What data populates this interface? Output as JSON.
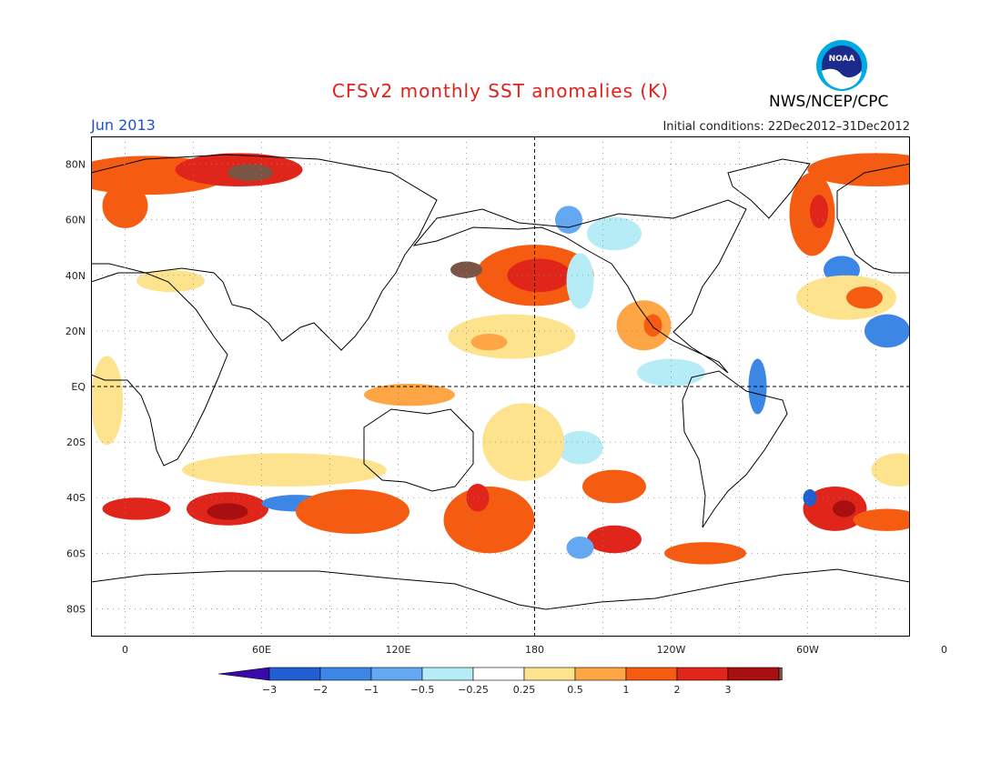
{
  "title": "CFSv2 monthly SST anomalies (K)",
  "period": "Jun 2013",
  "initial_conditions": "Initial conditions: 22Dec2012–31Dec2012",
  "agency": "NWS/NCEP/CPC",
  "logo_text": "NOAA",
  "map": {
    "lat_labels": [
      "80N",
      "60N",
      "40N",
      "20N",
      "EQ",
      "20S",
      "40S",
      "60S",
      "80S"
    ],
    "lon_labels": [
      "0",
      "60E",
      "120E",
      "180",
      "120W",
      "60W",
      "0"
    ],
    "lon_range": [
      -15,
      345
    ],
    "lat_range": [
      -90,
      90
    ]
  },
  "colorbar": {
    "tick_labels": [
      "−3",
      "−2",
      "−1",
      "−0.5",
      "−0.25",
      "0.25",
      "0.5",
      "1",
      "2",
      "3"
    ],
    "colors": [
      "#3a0aa8",
      "#1f5fd2",
      "#3c86e6",
      "#63a8f0",
      "#b5ecf5",
      "#ffffff",
      "#fde38e",
      "#fea646",
      "#f65b12",
      "#e0261a",
      "#a80f10",
      "#7a5545"
    ]
  },
  "anomaly_regions": [
    {
      "lon": 180,
      "lat": 40,
      "rx": 26,
      "ry": 11,
      "color": "#f65b12"
    },
    {
      "lon": 182,
      "lat": 40,
      "rx": 14,
      "ry": 6,
      "color": "#e0261a"
    },
    {
      "lon": 150,
      "lat": 42,
      "rx": 7,
      "ry": 3,
      "color": "#7a5545"
    },
    {
      "lon": 170,
      "lat": 18,
      "rx": 28,
      "ry": 8,
      "color": "#fde38e"
    },
    {
      "lon": 160,
      "lat": 16,
      "rx": 8,
      "ry": 3,
      "color": "#fea646"
    },
    {
      "lon": 228,
      "lat": 22,
      "rx": 12,
      "ry": 9,
      "color": "#fea646"
    },
    {
      "lon": 232,
      "lat": 22,
      "rx": 4,
      "ry": 4,
      "color": "#f65b12"
    },
    {
      "lon": 195,
      "lat": 60,
      "rx": 6,
      "ry": 5,
      "color": "#63a8f0"
    },
    {
      "lon": 215,
      "lat": 55,
      "rx": 12,
      "ry": 6,
      "color": "#b5ecf5"
    },
    {
      "lon": 200,
      "lat": 38,
      "rx": 6,
      "ry": 10,
      "color": "#b5ecf5"
    },
    {
      "lon": 240,
      "lat": 5,
      "rx": 15,
      "ry": 5,
      "color": "#b5ecf5"
    },
    {
      "lon": 278,
      "lat": 0,
      "rx": 4,
      "ry": 10,
      "color": "#3c86e6"
    },
    {
      "lon": 200,
      "lat": -22,
      "rx": 10,
      "ry": 6,
      "color": "#b5ecf5"
    },
    {
      "lon": 335,
      "lat": 20,
      "rx": 10,
      "ry": 6,
      "color": "#3c86e6"
    },
    {
      "lon": 315,
      "lat": 42,
      "rx": 8,
      "ry": 5,
      "color": "#3c86e6"
    },
    {
      "lon": 317,
      "lat": 32,
      "rx": 22,
      "ry": 8,
      "color": "#fde38e"
    },
    {
      "lon": 325,
      "lat": 32,
      "rx": 8,
      "ry": 4,
      "color": "#f65b12"
    },
    {
      "lon": 302,
      "lat": 62,
      "rx": 10,
      "ry": 15,
      "color": "#f65b12"
    },
    {
      "lon": 305,
      "lat": 63,
      "rx": 4,
      "ry": 6,
      "color": "#e0261a"
    },
    {
      "lon": 330,
      "lat": 78,
      "rx": 30,
      "ry": 6,
      "color": "#f65b12"
    },
    {
      "lon": 10,
      "lat": 76,
      "rx": 35,
      "ry": 7,
      "color": "#f65b12"
    },
    {
      "lon": 50,
      "lat": 78,
      "rx": 28,
      "ry": 6,
      "color": "#e0261a"
    },
    {
      "lon": 55,
      "lat": 77,
      "rx": 10,
      "ry": 3,
      "color": "#7a5545"
    },
    {
      "lon": 0,
      "lat": 65,
      "rx": 10,
      "ry": 8,
      "color": "#f65b12"
    },
    {
      "lon": 20,
      "lat": 38,
      "rx": 15,
      "ry": 4,
      "color": "#fde38e"
    },
    {
      "lon": -8,
      "lat": -5,
      "rx": 7,
      "ry": 16,
      "color": "#fde38e"
    },
    {
      "lon": 70,
      "lat": -30,
      "rx": 45,
      "ry": 6,
      "color": "#fde38e"
    },
    {
      "lon": 45,
      "lat": -44,
      "rx": 18,
      "ry": 6,
      "color": "#e0261a"
    },
    {
      "lon": 45,
      "lat": -45,
      "rx": 9,
      "ry": 3,
      "color": "#a80f10"
    },
    {
      "lon": 75,
      "lat": -42,
      "rx": 15,
      "ry": 3,
      "color": "#3c86e6"
    },
    {
      "lon": 100,
      "lat": -45,
      "rx": 25,
      "ry": 8,
      "color": "#f65b12"
    },
    {
      "lon": 5,
      "lat": -44,
      "rx": 15,
      "ry": 4,
      "color": "#e0261a"
    },
    {
      "lon": 160,
      "lat": -48,
      "rx": 20,
      "ry": 12,
      "color": "#f65b12"
    },
    {
      "lon": 155,
      "lat": -40,
      "rx": 5,
      "ry": 5,
      "color": "#e0261a"
    },
    {
      "lon": 125,
      "lat": -3,
      "rx": 20,
      "ry": 4,
      "color": "#fea646"
    },
    {
      "lon": 175,
      "lat": -20,
      "rx": 18,
      "ry": 14,
      "color": "#fde38e"
    },
    {
      "lon": 215,
      "lat": -36,
      "rx": 14,
      "ry": 6,
      "color": "#f65b12"
    },
    {
      "lon": 215,
      "lat": -55,
      "rx": 12,
      "ry": 5,
      "color": "#e0261a"
    },
    {
      "lon": 200,
      "lat": -58,
      "rx": 6,
      "ry": 4,
      "color": "#63a8f0"
    },
    {
      "lon": 255,
      "lat": -60,
      "rx": 18,
      "ry": 4,
      "color": "#f65b12"
    },
    {
      "lon": 312,
      "lat": -44,
      "rx": 14,
      "ry": 8,
      "color": "#e0261a"
    },
    {
      "lon": 316,
      "lat": -44,
      "rx": 5,
      "ry": 3,
      "color": "#a80f10"
    },
    {
      "lon": 301,
      "lat": -40,
      "rx": 3,
      "ry": 3,
      "color": "#1f5fd2"
    },
    {
      "lon": 335,
      "lat": -48,
      "rx": 15,
      "ry": 4,
      "color": "#f65b12"
    },
    {
      "lon": 340,
      "lat": -30,
      "rx": 12,
      "ry": 6,
      "color": "#fde38e"
    }
  ]
}
